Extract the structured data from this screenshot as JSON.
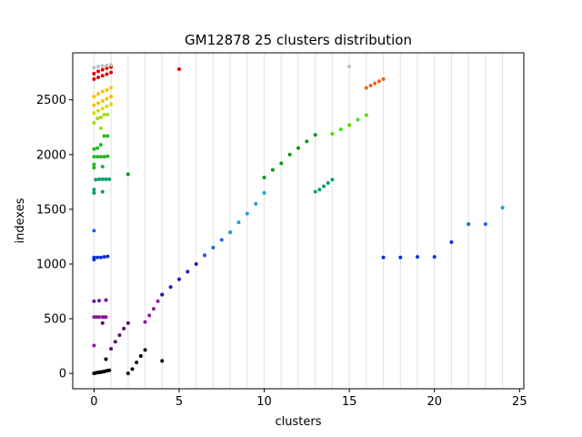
{
  "chart_data": {
    "type": "scatter",
    "title": "GM12878 25 clusters distribution",
    "xlabel": "clusters",
    "ylabel": "indexes",
    "xlim": [
      -1.25,
      25.25
    ],
    "ylim": [
      -140,
      2930
    ],
    "x_ticks": [
      0,
      5,
      10,
      15,
      20,
      25
    ],
    "y_ticks": [
      0,
      500,
      1000,
      1500,
      2000,
      2500
    ],
    "grid": "vertical light gray lines at every integer cluster from 0 to 24",
    "legend": "none",
    "series": [
      {
        "color": "#000000",
        "points": [
          [
            0,
            0
          ],
          [
            0.1,
            5
          ],
          [
            0.2,
            8
          ],
          [
            0.3,
            10
          ],
          [
            0.4,
            12
          ],
          [
            0.5,
            15
          ],
          [
            0.6,
            18
          ],
          [
            0.7,
            22
          ],
          [
            0.8,
            25
          ],
          [
            0.9,
            28
          ],
          [
            0.7,
            130
          ],
          [
            2,
            0
          ],
          [
            2.25,
            40
          ],
          [
            2.5,
            100
          ],
          [
            2.75,
            160
          ],
          [
            3,
            215
          ],
          [
            4,
            115
          ]
        ]
      },
      {
        "color": "#5a0a78",
        "points": [
          [
            1,
            225
          ],
          [
            1.25,
            290
          ],
          [
            1.5,
            350
          ],
          [
            1.75,
            410
          ],
          [
            2,
            460
          ],
          [
            0.5,
            460
          ]
        ]
      },
      {
        "color": "#8a1a9a",
        "points": [
          [
            0,
            255
          ],
          [
            0,
            515
          ],
          [
            0.1,
            515
          ],
          [
            0.2,
            515
          ],
          [
            0.3,
            515
          ],
          [
            0.5,
            515
          ],
          [
            0.6,
            515
          ],
          [
            0.7,
            515
          ],
          [
            3,
            470
          ],
          [
            3.25,
            530
          ],
          [
            3.5,
            590
          ],
          [
            3.75,
            660
          ],
          [
            4,
            720
          ]
        ]
      },
      {
        "color": "#6a10a8",
        "points": [
          [
            0,
            660
          ],
          [
            0.3,
            665
          ],
          [
            0.7,
            670
          ]
        ]
      },
      {
        "color": "#2a10c8",
        "points": [
          [
            4,
            720
          ],
          [
            4.5,
            790
          ],
          [
            5,
            860
          ],
          [
            5.5,
            930
          ],
          [
            6,
            1000
          ],
          [
            6.5,
            1080
          ]
        ]
      },
      {
        "color": "#0a30d8",
        "points": [
          [
            0,
            1040
          ],
          [
            0,
            1060
          ],
          [
            0.2,
            1060
          ],
          [
            0.4,
            1060
          ],
          [
            0.6,
            1065
          ],
          [
            0.8,
            1070
          ],
          [
            17,
            1060
          ],
          [
            18,
            1060
          ],
          [
            19,
            1065
          ],
          [
            20,
            1065
          ],
          [
            21,
            1200
          ]
        ]
      },
      {
        "color": "#1a6ae0",
        "points": [
          [
            0,
            1305
          ],
          [
            6.5,
            1080
          ],
          [
            7,
            1150
          ],
          [
            7.5,
            1220
          ],
          [
            8,
            1290
          ],
          [
            22,
            1365
          ],
          [
            23,
            1365
          ]
        ]
      },
      {
        "color": "#1aa0d8",
        "points": [
          [
            8,
            1290
          ],
          [
            8.5,
            1380
          ],
          [
            9,
            1460
          ],
          [
            9.5,
            1550
          ],
          [
            10,
            1650
          ],
          [
            24,
            1515
          ]
        ]
      },
      {
        "color": "#00a070",
        "points": [
          [
            0,
            1680
          ],
          [
            0.5,
            1660
          ],
          [
            13,
            1660
          ],
          [
            13.25,
            1680
          ],
          [
            13.5,
            1710
          ],
          [
            13.75,
            1740
          ],
          [
            14,
            1770
          ],
          [
            0.1,
            1770
          ],
          [
            0.3,
            1775
          ],
          [
            0.5,
            1775
          ],
          [
            0.7,
            1775
          ],
          [
            0.9,
            1775
          ],
          [
            0,
            1650
          ]
        ]
      },
      {
        "color": "#009a10",
        "points": [
          [
            10,
            1790
          ],
          [
            10.5,
            1860
          ],
          [
            11,
            1920
          ],
          [
            11.5,
            2000
          ],
          [
            12,
            2060
          ],
          [
            12.5,
            2120
          ],
          [
            13,
            2180
          ],
          [
            2,
            1820
          ]
        ]
      },
      {
        "color": "#20b820",
        "points": [
          [
            0,
            1880
          ],
          [
            0,
            1910
          ],
          [
            0,
            1980
          ],
          [
            0.2,
            1980
          ],
          [
            0.4,
            1980
          ],
          [
            0.6,
            1980
          ],
          [
            0.8,
            1985
          ],
          [
            0,
            2050
          ],
          [
            0.2,
            2060
          ],
          [
            0.4,
            2090
          ],
          [
            0.6,
            2170
          ],
          [
            0.8,
            2170
          ],
          [
            0.5,
            1890
          ]
        ]
      },
      {
        "color": "#48e000",
        "points": [
          [
            14,
            2190
          ],
          [
            14.5,
            2230
          ],
          [
            15,
            2270
          ],
          [
            15.5,
            2320
          ],
          [
            16,
            2360
          ]
        ]
      },
      {
        "color": "#a0e000",
        "points": [
          [
            0,
            2290
          ],
          [
            0.2,
            2330
          ],
          [
            0.4,
            2340
          ],
          [
            0.6,
            2365
          ],
          [
            0.8,
            2365
          ],
          [
            0.4,
            2240
          ]
        ]
      },
      {
        "color": "#d8d800",
        "points": [
          [
            0,
            2380
          ],
          [
            0.25,
            2400
          ],
          [
            0.5,
            2420
          ],
          [
            0.75,
            2440
          ],
          [
            1,
            2460
          ]
        ]
      },
      {
        "color": "#f8c000",
        "points": [
          [
            0,
            2450
          ],
          [
            0.25,
            2470
          ],
          [
            0.5,
            2490
          ],
          [
            0.75,
            2510
          ],
          [
            1,
            2530
          ],
          [
            0,
            2530
          ],
          [
            0.25,
            2555
          ],
          [
            0.5,
            2575
          ],
          [
            0.75,
            2590
          ],
          [
            1,
            2610
          ]
        ]
      },
      {
        "color": "#f06010",
        "points": [
          [
            16,
            2610
          ],
          [
            16.25,
            2630
          ],
          [
            16.5,
            2650
          ],
          [
            16.75,
            2670
          ],
          [
            17,
            2690
          ]
        ]
      },
      {
        "color": "#e00000",
        "points": [
          [
            0,
            2690
          ],
          [
            0.25,
            2705
          ],
          [
            0.5,
            2720
          ],
          [
            0.75,
            2735
          ],
          [
            1,
            2750
          ],
          [
            0,
            2740
          ],
          [
            0.25,
            2760
          ],
          [
            0.5,
            2775
          ],
          [
            0.75,
            2790
          ],
          [
            1,
            2800
          ],
          [
            5,
            2780
          ]
        ]
      },
      {
        "color": "#c0c0c0",
        "points": [
          [
            0,
            2795
          ],
          [
            0.25,
            2805
          ],
          [
            0.5,
            2810
          ],
          [
            0.75,
            2815
          ],
          [
            1,
            2820
          ],
          [
            15,
            2805
          ]
        ]
      }
    ]
  }
}
